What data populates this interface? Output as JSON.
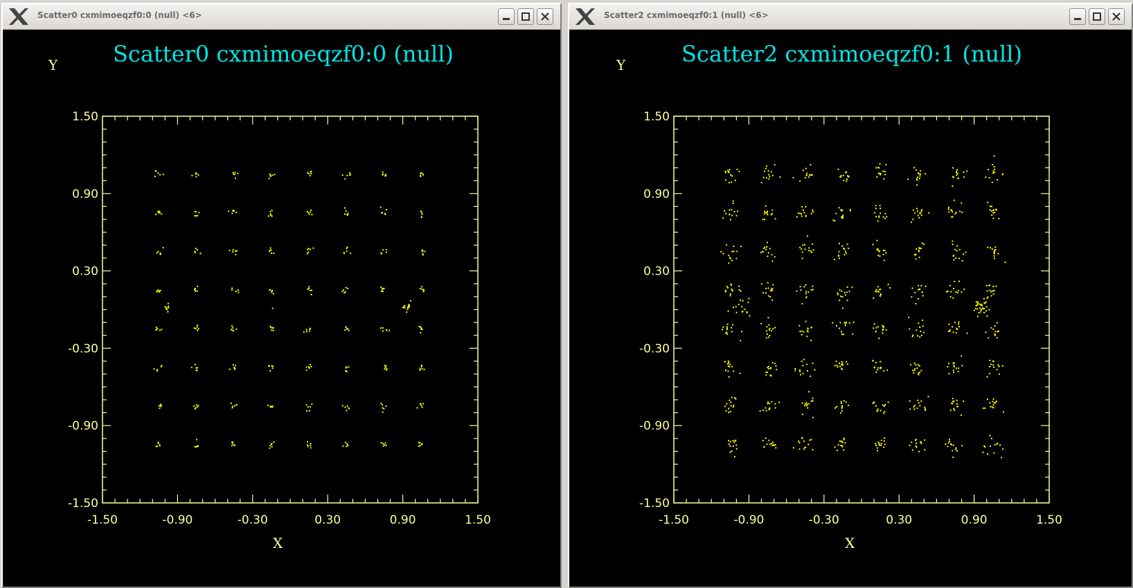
{
  "windows": [
    {
      "title": "Scatter0 cxmimoeqzf0:0 (null) <6>",
      "logo_icon": "x-window-logo-icon",
      "buttons": [
        "minimize-icon",
        "maximize-icon",
        "close-icon"
      ],
      "chart_data": {
        "type": "scatter",
        "title": "Scatter0 cxmimoeqzf0:0 (null)",
        "xlabel": "X",
        "ylabel": "Y",
        "xlim": [
          -1.5,
          1.5
        ],
        "ylim": [
          -1.5,
          1.5
        ],
        "xticks": [
          "-1.50",
          "-0.90",
          "-0.30",
          "0.30",
          "0.90",
          "1.50"
        ],
        "yticks": [
          "1.50",
          "0.90",
          "0.30",
          "-0.30",
          "-0.90",
          "-1.50"
        ],
        "constellation_levels": [
          -1.05,
          -0.75,
          -0.45,
          -0.15,
          0.15,
          0.45,
          0.75,
          1.05
        ],
        "cluster_spread": 0.015,
        "points_per_cluster": 6,
        "extra_clusters": [
          {
            "x": -0.99,
            "y": 0.02,
            "n": 8,
            "spread": 0.015
          },
          {
            "x": 0.94,
            "y": 0.02,
            "n": 14,
            "spread": 0.018
          },
          {
            "x": -0.14,
            "y": 0.01,
            "n": 1,
            "spread": 0.0
          }
        ],
        "point_color": "#ffff00",
        "grid": false
      }
    },
    {
      "title": "Scatter2 cxmimoeqzf0:1 (null) <6>",
      "logo_icon": "x-window-logo-icon",
      "buttons": [
        "minimize-icon",
        "maximize-icon",
        "close-icon"
      ],
      "chart_data": {
        "type": "scatter",
        "title": "Scatter2 cxmimoeqzf0:1 (null)",
        "xlabel": "X",
        "ylabel": "Y",
        "xlim": [
          -1.5,
          1.5
        ],
        "ylim": [
          -1.5,
          1.5
        ],
        "xticks": [
          "-1.50",
          "-0.90",
          "-0.30",
          "0.30",
          "0.90",
          "1.50"
        ],
        "yticks": [
          "1.50",
          "0.90",
          "0.30",
          "-0.30",
          "-0.90",
          "-1.50"
        ],
        "constellation_levels": [
          -1.05,
          -0.75,
          -0.45,
          -0.15,
          0.15,
          0.45,
          0.75,
          1.05
        ],
        "cluster_spread": 0.035,
        "points_per_cluster": 14,
        "extra_clusters": [
          {
            "x": -0.97,
            "y": 0.02,
            "n": 16,
            "spread": 0.035
          },
          {
            "x": 0.95,
            "y": 0.02,
            "n": 30,
            "spread": 0.03
          },
          {
            "x": -0.15,
            "y": 0.01,
            "n": 1,
            "spread": 0.0
          }
        ],
        "point_color": "#ffff00",
        "grid": false
      }
    }
  ]
}
